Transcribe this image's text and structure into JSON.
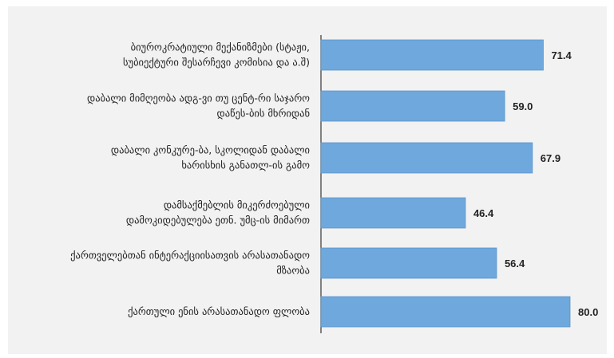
{
  "chart_data": {
    "type": "bar",
    "orientation": "horizontal",
    "categories": [
      [
        "ბიუროკრატიული მექანიზმები (სტაჟი,",
        "სუბიექტური შესარჩევი კომისია და ა.შ)"
      ],
      [
        "დაბალი მიმღეობა ადგ-ვი თუ ცენტ-რი საჯარო",
        "დაწეს-ბის მხრიდან"
      ],
      [
        "დაბალი კონკურე-ბა, სკოლიდან დაბალი",
        "ხარისხის განათლ-ის გამო"
      ],
      [
        "დამსაქმებლის მიკერძოებული",
        "დამოკიდებულება ეთნ. უმც-ის მიმართ"
      ],
      [
        "ქართველებთან ინტერაქციისათვის არასათანადო",
        "მზაობა"
      ],
      [
        "ქართული ენის არასათანადო ფლობა"
      ]
    ],
    "values": [
      71.4,
      59.0,
      67.9,
      46.4,
      56.4,
      80.0
    ],
    "value_labels": [
      "71.4",
      "59.0",
      "67.9",
      "46.4",
      "56.4",
      "80.0"
    ],
    "xlim": [
      0,
      80
    ],
    "grid": false,
    "legend": "none",
    "colors": {
      "bar": "#6fa8dc",
      "bar_stroke": "#5b95cc",
      "panel": "#f2f2f2",
      "axis": "#444444",
      "text": "#222222"
    }
  }
}
